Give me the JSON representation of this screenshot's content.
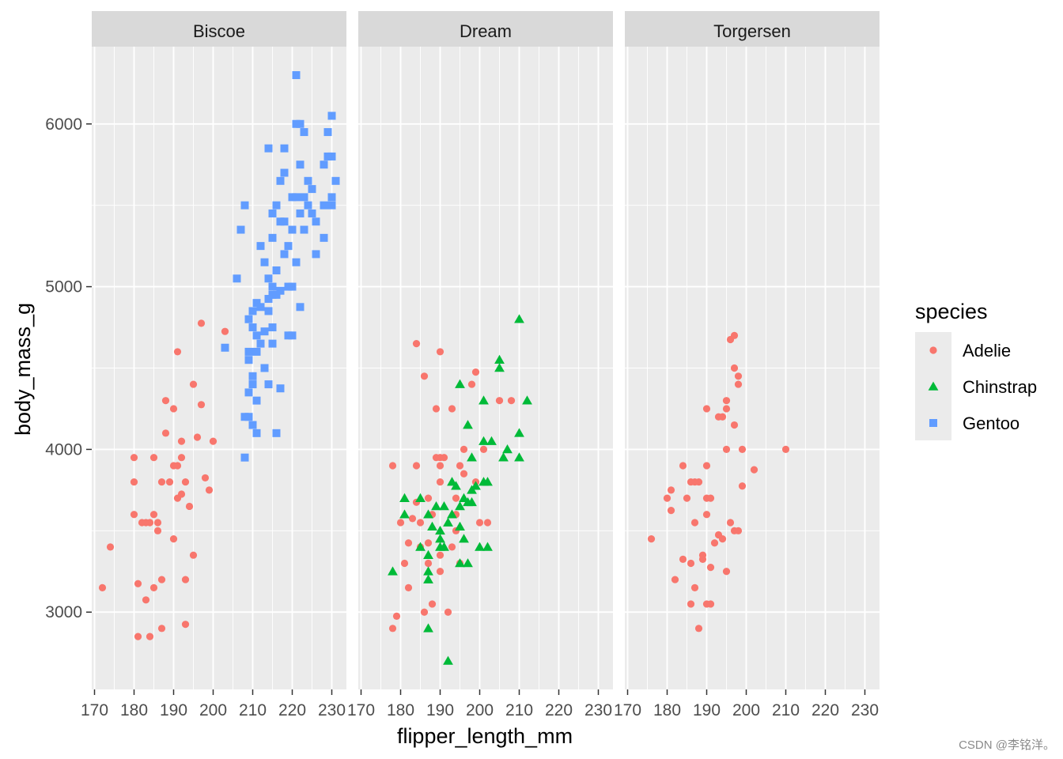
{
  "chart_data": {
    "type": "scatter",
    "xlabel": "flipper_length_mm",
    "ylabel": "body_mass_g",
    "xlim": [
      169.3,
      233.7
    ],
    "ylim": [
      2525,
      6475
    ],
    "x_ticks": [
      170,
      180,
      190,
      200,
      210,
      220,
      230
    ],
    "y_ticks": [
      3000,
      4000,
      5000,
      6000
    ],
    "grid": true,
    "facets": [
      "Biscoe",
      "Dream",
      "Torgersen"
    ],
    "legend": {
      "title": "species",
      "placement": "right",
      "entries": [
        {
          "name": "Adelie",
          "color": "#F8766D",
          "shape": "circle"
        },
        {
          "name": "Chinstrap",
          "color": "#00BA38",
          "shape": "triangle"
        },
        {
          "name": "Gentoo",
          "color": "#619CFF",
          "shape": "square"
        }
      ]
    },
    "series": [
      {
        "name": "Adelie",
        "facet": "Biscoe",
        "points": [
          [
            172,
            3150
          ],
          [
            174,
            3400
          ],
          [
            180,
            3950
          ],
          [
            180,
            3800
          ],
          [
            180,
            3600
          ],
          [
            181,
            2850
          ],
          [
            181,
            3175
          ],
          [
            182,
            3550
          ],
          [
            183,
            3550
          ],
          [
            183,
            3075
          ],
          [
            184,
            2850
          ],
          [
            184,
            3550
          ],
          [
            185,
            3950
          ],
          [
            185,
            3150
          ],
          [
            185,
            3600
          ],
          [
            186,
            3550
          ],
          [
            186,
            3500
          ],
          [
            187,
            3800
          ],
          [
            187,
            2900
          ],
          [
            187,
            3200
          ],
          [
            188,
            4300
          ],
          [
            188,
            4100
          ],
          [
            189,
            3800
          ],
          [
            190,
            3900
          ],
          [
            190,
            4250
          ],
          [
            190,
            3450
          ],
          [
            191,
            4600
          ],
          [
            191,
            3900
          ],
          [
            191,
            3700
          ],
          [
            192,
            3725
          ],
          [
            192,
            4050
          ],
          [
            192,
            3950
          ],
          [
            193,
            3800
          ],
          [
            193,
            2925
          ],
          [
            193,
            3200
          ],
          [
            194,
            3650
          ],
          [
            195,
            4400
          ],
          [
            195,
            3350
          ],
          [
            196,
            4075
          ],
          [
            197,
            4775
          ],
          [
            197,
            4275
          ],
          [
            198,
            3825
          ],
          [
            199,
            3750
          ],
          [
            200,
            4050
          ],
          [
            203,
            4725
          ]
        ]
      },
      {
        "name": "Gentoo",
        "facet": "Biscoe",
        "points": [
          [
            203,
            4625
          ],
          [
            206,
            5050
          ],
          [
            207,
            5350
          ],
          [
            208,
            3950
          ],
          [
            208,
            4200
          ],
          [
            208,
            5500
          ],
          [
            209,
            4600
          ],
          [
            209,
            4200
          ],
          [
            209,
            4800
          ],
          [
            209,
            4350
          ],
          [
            209,
            4550
          ],
          [
            210,
            4150
          ],
          [
            210,
            4400
          ],
          [
            210,
            4750
          ],
          [
            210,
            4450
          ],
          [
            210,
            4850
          ],
          [
            211,
            4100
          ],
          [
            211,
            4900
          ],
          [
            211,
            4600
          ],
          [
            211,
            4700
          ],
          [
            211,
            4300
          ],
          [
            212,
            4650
          ],
          [
            212,
            4875
          ],
          [
            212,
            5250
          ],
          [
            213,
            4725
          ],
          [
            213,
            4500
          ],
          [
            213,
            5150
          ],
          [
            214,
            4400
          ],
          [
            214,
            4850
          ],
          [
            214,
            5850
          ],
          [
            214,
            4925
          ],
          [
            214,
            5050
          ],
          [
            215,
            4750
          ],
          [
            215,
            5000
          ],
          [
            215,
            4950
          ],
          [
            215,
            5450
          ],
          [
            215,
            5300
          ],
          [
            215,
            4650
          ],
          [
            216,
            5100
          ],
          [
            216,
            4100
          ],
          [
            216,
            5500
          ],
          [
            216,
            4950
          ],
          [
            217,
            5650
          ],
          [
            217,
            4375
          ],
          [
            217,
            5400
          ],
          [
            217,
            4975
          ],
          [
            218,
            5850
          ],
          [
            218,
            5200
          ],
          [
            218,
            5700
          ],
          [
            218,
            5400
          ],
          [
            219,
            4700
          ],
          [
            219,
            5250
          ],
          [
            219,
            5000
          ],
          [
            220,
            5550
          ],
          [
            220,
            5350
          ],
          [
            220,
            5000
          ],
          [
            220,
            4700
          ],
          [
            221,
            6300
          ],
          [
            221,
            6000
          ],
          [
            221,
            5550
          ],
          [
            221,
            5150
          ],
          [
            222,
            5450
          ],
          [
            222,
            5750
          ],
          [
            222,
            4875
          ],
          [
            222,
            6000
          ],
          [
            223,
            5350
          ],
          [
            223,
            5950
          ],
          [
            223,
            5550
          ],
          [
            224,
            5500
          ],
          [
            224,
            5650
          ],
          [
            225,
            5600
          ],
          [
            225,
            5450
          ],
          [
            226,
            5400
          ],
          [
            226,
            5200
          ],
          [
            228,
            5300
          ],
          [
            228,
            5500
          ],
          [
            228,
            5750
          ],
          [
            229,
            5950
          ],
          [
            229,
            5800
          ],
          [
            230,
            5500
          ],
          [
            230,
            5550
          ],
          [
            230,
            6050
          ],
          [
            230,
            5800
          ],
          [
            231,
            5650
          ]
        ]
      },
      {
        "name": "Adelie",
        "facet": "Dream",
        "points": [
          [
            178,
            3900
          ],
          [
            178,
            2900
          ],
          [
            179,
            2975
          ],
          [
            180,
            3550
          ],
          [
            181,
            3300
          ],
          [
            182,
            3425
          ],
          [
            182,
            3150
          ],
          [
            183,
            3575
          ],
          [
            184,
            3900
          ],
          [
            184,
            4650
          ],
          [
            184,
            3675
          ],
          [
            185,
            3400
          ],
          [
            185,
            3550
          ],
          [
            186,
            4450
          ],
          [
            186,
            3000
          ],
          [
            187,
            3700
          ],
          [
            187,
            3300
          ],
          [
            187,
            3425
          ],
          [
            188,
            3600
          ],
          [
            188,
            3050
          ],
          [
            189,
            3950
          ],
          [
            189,
            4250
          ],
          [
            190,
            4600
          ],
          [
            190,
            3800
          ],
          [
            190,
            3900
          ],
          [
            190,
            3250
          ],
          [
            190,
            3950
          ],
          [
            190,
            3350
          ],
          [
            191,
            3950
          ],
          [
            192,
            3000
          ],
          [
            193,
            4250
          ],
          [
            193,
            3400
          ],
          [
            194,
            3700
          ],
          [
            194,
            3500
          ],
          [
            194,
            3600
          ],
          [
            195,
            3900
          ],
          [
            195,
            3300
          ],
          [
            196,
            3850
          ],
          [
            196,
            4000
          ],
          [
            198,
            4400
          ],
          [
            199,
            3800
          ],
          [
            199,
            4475
          ],
          [
            200,
            3550
          ],
          [
            201,
            4000
          ],
          [
            202,
            3550
          ],
          [
            205,
            4300
          ],
          [
            208,
            4300
          ]
        ]
      },
      {
        "name": "Chinstrap",
        "facet": "Dream",
        "points": [
          [
            178,
            3250
          ],
          [
            181,
            3700
          ],
          [
            181,
            3600
          ],
          [
            185,
            3700
          ],
          [
            185,
            3400
          ],
          [
            187,
            3350
          ],
          [
            187,
            3600
          ],
          [
            187,
            3200
          ],
          [
            187,
            2900
          ],
          [
            187,
            3250
          ],
          [
            188,
            3525
          ],
          [
            189,
            3650
          ],
          [
            190,
            3450
          ],
          [
            190,
            3500
          ],
          [
            190,
            3400
          ],
          [
            191,
            3650
          ],
          [
            191,
            3400
          ],
          [
            192,
            3550
          ],
          [
            192,
            2700
          ],
          [
            193,
            3800
          ],
          [
            193,
            3600
          ],
          [
            194,
            3775
          ],
          [
            195,
            3650
          ],
          [
            195,
            3300
          ],
          [
            195,
            3525
          ],
          [
            195,
            4400
          ],
          [
            196,
            3450
          ],
          [
            196,
            3700
          ],
          [
            197,
            3675
          ],
          [
            197,
            3300
          ],
          [
            197,
            4150
          ],
          [
            198,
            3675
          ],
          [
            198,
            3750
          ],
          [
            198,
            3950
          ],
          [
            199,
            3775
          ],
          [
            200,
            3400
          ],
          [
            201,
            4050
          ],
          [
            201,
            3800
          ],
          [
            201,
            4300
          ],
          [
            202,
            3800
          ],
          [
            202,
            3400
          ],
          [
            203,
            4050
          ],
          [
            205,
            4500
          ],
          [
            205,
            4550
          ],
          [
            206,
            3950
          ],
          [
            207,
            4000
          ],
          [
            210,
            4100
          ],
          [
            210,
            3950
          ],
          [
            210,
            4800
          ],
          [
            212,
            4300
          ]
        ]
      },
      {
        "name": "Adelie",
        "facet": "Torgersen",
        "points": [
          [
            176,
            3450
          ],
          [
            180,
            3700
          ],
          [
            181,
            3750
          ],
          [
            181,
            3625
          ],
          [
            182,
            3200
          ],
          [
            184,
            3325
          ],
          [
            184,
            3900
          ],
          [
            185,
            3700
          ],
          [
            186,
            3800
          ],
          [
            186,
            3300
          ],
          [
            186,
            3050
          ],
          [
            187,
            3800
          ],
          [
            187,
            3150
          ],
          [
            187,
            3550
          ],
          [
            188,
            2900
          ],
          [
            188,
            3800
          ],
          [
            189,
            3350
          ],
          [
            189,
            3325
          ],
          [
            190,
            3900
          ],
          [
            190,
            3700
          ],
          [
            190,
            3600
          ],
          [
            190,
            4250
          ],
          [
            190,
            3050
          ],
          [
            191,
            3700
          ],
          [
            191,
            3050
          ],
          [
            191,
            3275
          ],
          [
            192,
            3425
          ],
          [
            193,
            3475
          ],
          [
            193,
            4200
          ],
          [
            194,
            4200
          ],
          [
            194,
            3450
          ],
          [
            195,
            4300
          ],
          [
            195,
            4250
          ],
          [
            195,
            4000
          ],
          [
            195,
            3250
          ],
          [
            196,
            4675
          ],
          [
            196,
            3550
          ],
          [
            197,
            4700
          ],
          [
            197,
            4150
          ],
          [
            197,
            4500
          ],
          [
            197,
            3500
          ],
          [
            198,
            4450
          ],
          [
            198,
            4400
          ],
          [
            198,
            3500
          ],
          [
            199,
            3775
          ],
          [
            199,
            4000
          ],
          [
            202,
            3875
          ],
          [
            210,
            4000
          ]
        ]
      }
    ]
  },
  "watermark": "CSDN @李铭洋。"
}
